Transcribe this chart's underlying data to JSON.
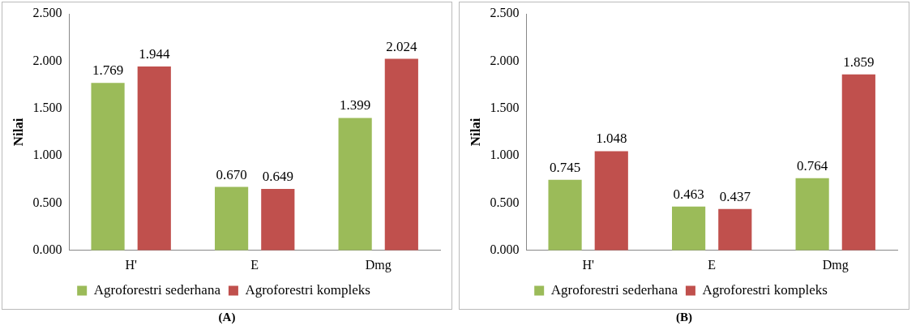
{
  "chart_data": [
    {
      "type": "bar",
      "ylabel": "Nilai",
      "categories": [
        "H'",
        "E",
        "Dmg"
      ],
      "ylim": [
        0,
        2.5
      ],
      "yticks": [
        {
          "value": 0,
          "label": "0.000"
        },
        {
          "value": 0.5,
          "label": "0.500"
        },
        {
          "value": 1,
          "label": "1.000"
        },
        {
          "value": 1.5,
          "label": "1.500"
        },
        {
          "value": 2,
          "label": "2.000"
        },
        {
          "value": 2.5,
          "label": "2.500"
        }
      ],
      "legend": "bottom",
      "annotations": [
        "(A)"
      ],
      "series": [
        {
          "name": "Agroforestri sederhana",
          "color": "#9bbb59",
          "values": [
            1.769,
            0.67,
            1.399
          ],
          "value_labels": [
            "1.769",
            "0.670",
            "1.399"
          ]
        },
        {
          "name": "Agroforestri kompleks",
          "color": "#c0504d",
          "values": [
            1.944,
            0.649,
            2.024
          ],
          "value_labels": [
            "1.944",
            "0.649",
            "2.024"
          ]
        }
      ]
    },
    {
      "type": "bar",
      "ylabel": "Nilai",
      "categories": [
        "H'",
        "E",
        "Dmg"
      ],
      "ylim": [
        0,
        2.5
      ],
      "yticks": [
        {
          "value": 0,
          "label": "0.000"
        },
        {
          "value": 0.5,
          "label": "0.500"
        },
        {
          "value": 1,
          "label": "1.000"
        },
        {
          "value": 1.5,
          "label": "1.500"
        },
        {
          "value": 2,
          "label": "2.000"
        },
        {
          "value": 2.5,
          "label": "2.500"
        }
      ],
      "legend": "bottom",
      "annotations": [
        "(B)"
      ],
      "series": [
        {
          "name": "Agroforestri sederhana",
          "color": "#9bbb59",
          "values": [
            0.745,
            0.463,
            0.764
          ],
          "value_labels": [
            "0.745",
            "0.463",
            "0.764"
          ]
        },
        {
          "name": "Agroforestri kompleks",
          "color": "#c0504d",
          "values": [
            1.048,
            0.437,
            1.859
          ],
          "value_labels": [
            "1.048",
            "0.437",
            "1.859"
          ]
        }
      ]
    }
  ]
}
